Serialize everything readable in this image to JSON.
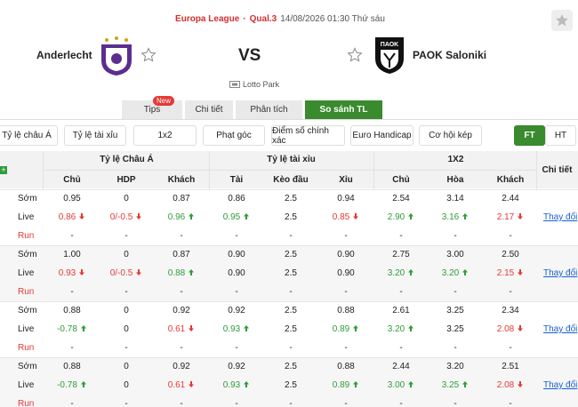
{
  "header": {
    "league": "Europa League",
    "separator": "·",
    "round": "Qual.3",
    "datetime": "14/08/2026 01:30 Thứ sáu",
    "home": "Anderlecht",
    "vs": "VS",
    "away": "PAOK Saloniki",
    "away_logo_text": "ΠΑΟΚ",
    "venue": "Lotto Park"
  },
  "tabs": [
    {
      "label": "Tips",
      "badge": "New"
    },
    {
      "label": "Chi tiết"
    },
    {
      "label": "Phân tích"
    },
    {
      "label": "So sánh TL",
      "active": true
    }
  ],
  "filters": [
    "Tỷ lệ châu Á",
    "Tỷ lệ tài xỉu",
    "1x2",
    "Phạt góc",
    "Điểm số chính xác",
    "Euro Handicap",
    "Cơ hội kép"
  ],
  "periods": [
    {
      "label": "FT",
      "active": true
    },
    {
      "label": "HT"
    }
  ],
  "table": {
    "groups": [
      "Tỷ lệ Châu Á",
      "Tỷ lệ tài xỉu",
      "1X2"
    ],
    "detail": "Chi tiết",
    "columns": [
      "Chủ",
      "HDP",
      "Khách",
      "Tài",
      "Kèo đầu",
      "Xỉu",
      "Chủ",
      "Hòa",
      "Khách"
    ],
    "blocks": [
      {
        "link": "Thay đổi",
        "rows": [
          {
            "label": "Sớm",
            "cells": [
              "0.95",
              "0",
              "0.87",
              "0.86",
              "2.5",
              "0.94",
              "2.54",
              "3.14",
              "2.44"
            ]
          },
          {
            "label": "Live",
            "cells": [
              {
                "v": "0.86",
                "trend": "down"
              },
              {
                "v": "0/-0.5",
                "trend": "down"
              },
              {
                "v": "0.96",
                "trend": "up"
              },
              {
                "v": "0.95",
                "trend": "up"
              },
              "2.5",
              {
                "v": "0.85",
                "trend": "down"
              },
              {
                "v": "2.90",
                "trend": "up"
              },
              {
                "v": "3.16",
                "trend": "up"
              },
              {
                "v": "2.17",
                "trend": "down"
              }
            ]
          },
          {
            "label": "Run",
            "cells": [
              "-",
              "-",
              "-",
              "-",
              "-",
              "-",
              "-",
              "-",
              "-"
            ]
          }
        ]
      },
      {
        "link": "Thay đổi",
        "rows": [
          {
            "label": "Sớm",
            "cells": [
              "1.00",
              "0",
              "0.87",
              "0.90",
              "2.5",
              "0.90",
              "2.75",
              "3.00",
              "2.50"
            ]
          },
          {
            "label": "Live",
            "cells": [
              {
                "v": "0.93",
                "trend": "down"
              },
              {
                "v": "0/-0.5",
                "trend": "down"
              },
              {
                "v": "0.88",
                "trend": "up"
              },
              "0.90",
              "2.5",
              "0.90",
              {
                "v": "3.20",
                "trend": "up"
              },
              {
                "v": "3.20",
                "trend": "up"
              },
              {
                "v": "2.15",
                "trend": "down"
              }
            ]
          },
          {
            "label": "Run",
            "cells": [
              "-",
              "-",
              "-",
              "-",
              "-",
              "-",
              "-",
              "-",
              "-"
            ]
          }
        ]
      },
      {
        "link": "Thay đổi",
        "rows": [
          {
            "label": "Sớm",
            "cells": [
              "0.88",
              "0",
              "0.92",
              "0.92",
              "2.5",
              "0.88",
              "2.61",
              "3.25",
              "2.34"
            ]
          },
          {
            "label": "Live",
            "cells": [
              {
                "v": "-0.78",
                "trend": "up"
              },
              "0",
              {
                "v": "0.61",
                "trend": "down"
              },
              {
                "v": "0.93",
                "trend": "up"
              },
              "2.5",
              {
                "v": "0.89",
                "trend": "up"
              },
              {
                "v": "3.20",
                "trend": "up"
              },
              "3.25",
              {
                "v": "2.08",
                "trend": "down"
              }
            ]
          },
          {
            "label": "Run",
            "cells": [
              "-",
              "-",
              "-",
              "-",
              "-",
              "-",
              "-",
              "-",
              "-"
            ]
          }
        ]
      },
      {
        "link": "Thay đổi",
        "rows": [
          {
            "label": "Sớm",
            "cells": [
              "0.88",
              "0",
              "0.92",
              "0.92",
              "2.5",
              "0.88",
              "2.44",
              "3.20",
              "2.51"
            ]
          },
          {
            "label": "Live",
            "cells": [
              {
                "v": "-0.78",
                "trend": "up"
              },
              "0",
              {
                "v": "0.61",
                "trend": "down"
              },
              {
                "v": "0.93",
                "trend": "up"
              },
              "2.5",
              {
                "v": "0.89",
                "trend": "up"
              },
              {
                "v": "3.00",
                "trend": "up"
              },
              {
                "v": "3.25",
                "trend": "up"
              },
              {
                "v": "2.08",
                "trend": "down"
              }
            ]
          },
          {
            "label": "Run",
            "cells": [
              "-",
              "-",
              "-",
              "-",
              "-",
              "-",
              "-",
              "-",
              "-"
            ]
          }
        ]
      }
    ]
  }
}
